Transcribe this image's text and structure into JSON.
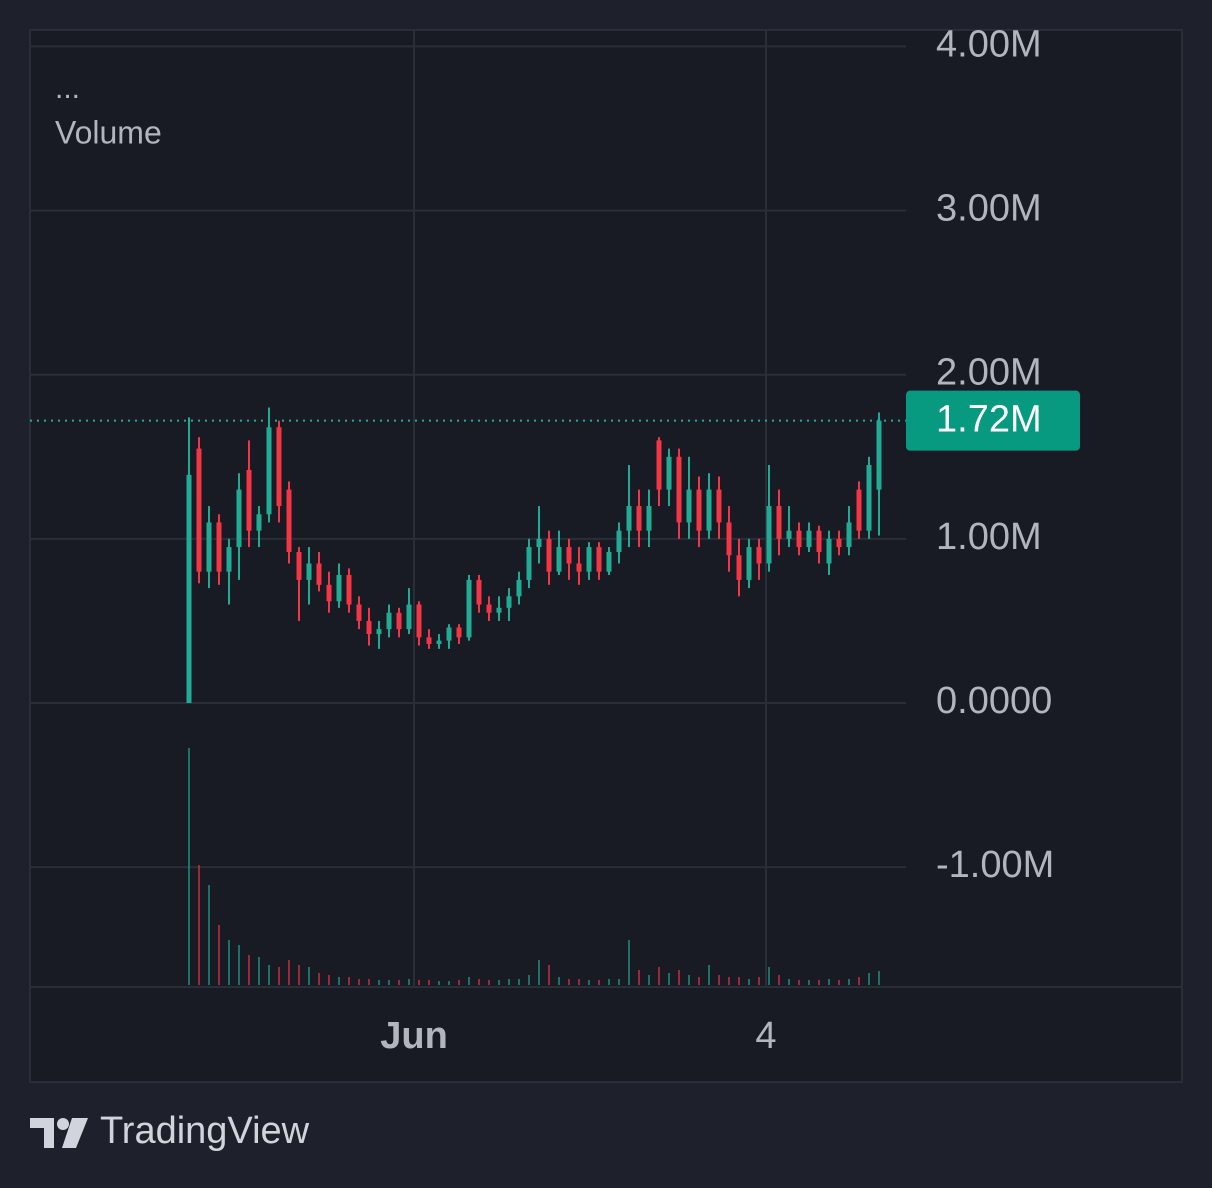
{
  "chart_data": {
    "type": "candlestick",
    "legend_menu": "...",
    "legend_label": "Volume",
    "brand": "TradingView",
    "up_color": "#22ab94",
    "down_color": "#f23645",
    "ylim": [
      -1.73,
      4.1
    ],
    "yticks": [
      {
        "value": 4,
        "label": "4.00M"
      },
      {
        "value": 3,
        "label": "3.00M"
      },
      {
        "value": 2,
        "label": "2.00M"
      },
      {
        "value": 1,
        "label": "1.00M"
      },
      {
        "value": 0,
        "label": "0.0000"
      },
      {
        "value": -1,
        "label": "-1.00M"
      }
    ],
    "xlim": [
      -15.9,
      71.7
    ],
    "xticks": [
      {
        "value": 22.5,
        "label": "Jun"
      },
      {
        "value": 57.7,
        "label": "4"
      }
    ],
    "last_price": {
      "value": 1.72,
      "label": "1.72M"
    },
    "candles": [
      [
        0,
        1.74,
        0,
        1.39
      ],
      [
        1.55,
        1.62,
        0.73,
        0.8
      ],
      [
        0.8,
        1.2,
        0.7,
        1.1
      ],
      [
        1.1,
        1.15,
        0.72,
        0.8
      ],
      [
        0.8,
        1.0,
        0.6,
        0.95
      ],
      [
        0.95,
        1.4,
        0.75,
        1.3
      ],
      [
        1.42,
        1.6,
        0.95,
        1.05
      ],
      [
        1.05,
        1.2,
        0.95,
        1.15
      ],
      [
        1.15,
        1.8,
        1.1,
        1.68
      ],
      [
        1.68,
        1.72,
        1.1,
        1.2
      ],
      [
        1.3,
        1.35,
        0.85,
        0.92
      ],
      [
        0.92,
        0.95,
        0.5,
        0.75
      ],
      [
        0.75,
        0.95,
        0.6,
        0.85
      ],
      [
        0.85,
        0.92,
        0.68,
        0.72
      ],
      [
        0.72,
        0.8,
        0.55,
        0.62
      ],
      [
        0.62,
        0.85,
        0.58,
        0.78
      ],
      [
        0.78,
        0.82,
        0.55,
        0.6
      ],
      [
        0.6,
        0.65,
        0.45,
        0.5
      ],
      [
        0.5,
        0.58,
        0.35,
        0.42
      ],
      [
        0.42,
        0.5,
        0.33,
        0.45
      ],
      [
        0.45,
        0.6,
        0.4,
        0.55
      ],
      [
        0.55,
        0.58,
        0.4,
        0.45
      ],
      [
        0.45,
        0.7,
        0.42,
        0.6
      ],
      [
        0.6,
        0.62,
        0.35,
        0.4
      ],
      [
        0.4,
        0.45,
        0.33,
        0.36
      ],
      [
        0.36,
        0.42,
        0.33,
        0.38
      ],
      [
        0.38,
        0.48,
        0.33,
        0.46
      ],
      [
        0.46,
        0.48,
        0.36,
        0.4
      ],
      [
        0.4,
        0.78,
        0.38,
        0.75
      ],
      [
        0.75,
        0.78,
        0.55,
        0.6
      ],
      [
        0.6,
        0.65,
        0.5,
        0.55
      ],
      [
        0.55,
        0.65,
        0.5,
        0.58
      ],
      [
        0.58,
        0.7,
        0.5,
        0.65
      ],
      [
        0.65,
        0.8,
        0.6,
        0.75
      ],
      [
        0.75,
        1.0,
        0.7,
        0.95
      ],
      [
        0.95,
        1.2,
        0.85,
        1.0
      ],
      [
        1.0,
        1.05,
        0.72,
        0.8
      ],
      [
        0.8,
        1.05,
        0.78,
        0.95
      ],
      [
        0.95,
        1.0,
        0.75,
        0.85
      ],
      [
        0.85,
        0.95,
        0.72,
        0.8
      ],
      [
        0.8,
        0.98,
        0.75,
        0.95
      ],
      [
        0.95,
        0.98,
        0.75,
        0.8
      ],
      [
        0.8,
        0.95,
        0.78,
        0.92
      ],
      [
        0.92,
        1.1,
        0.85,
        1.05
      ],
      [
        1.05,
        1.45,
        0.95,
        1.2
      ],
      [
        1.2,
        1.3,
        0.95,
        1.05
      ],
      [
        1.05,
        1.3,
        0.95,
        1.2
      ],
      [
        1.6,
        1.62,
        1.2,
        1.3
      ],
      [
        1.3,
        1.55,
        1.2,
        1.5
      ],
      [
        1.5,
        1.55,
        1.0,
        1.1
      ],
      [
        1.1,
        1.5,
        1.0,
        1.3
      ],
      [
        1.3,
        1.38,
        0.95,
        1.05
      ],
      [
        1.05,
        1.4,
        1.0,
        1.3
      ],
      [
        1.3,
        1.38,
        1.0,
        1.1
      ],
      [
        1.1,
        1.2,
        0.8,
        0.9
      ],
      [
        0.9,
        1.0,
        0.65,
        0.75
      ],
      [
        0.75,
        1.0,
        0.7,
        0.95
      ],
      [
        0.95,
        1.0,
        0.75,
        0.85
      ],
      [
        0.85,
        1.45,
        0.8,
        1.2
      ],
      [
        1.2,
        1.3,
        0.9,
        1.0
      ],
      [
        1.0,
        1.2,
        0.95,
        1.05
      ],
      [
        1.05,
        1.1,
        0.9,
        0.95
      ],
      [
        0.95,
        1.1,
        0.92,
        1.05
      ],
      [
        1.05,
        1.08,
        0.85,
        0.92
      ],
      [
        0.85,
        1.05,
        0.78,
        1.0
      ],
      [
        1.0,
        1.05,
        0.9,
        0.95
      ],
      [
        0.95,
        1.2,
        0.9,
        1.1
      ],
      [
        1.3,
        1.35,
        1.0,
        1.05
      ],
      [
        1.05,
        1.5,
        1.0,
        1.45
      ],
      [
        1.3,
        1.77,
        1.02,
        1.72
      ]
    ],
    "volume": [
      237,
      120,
      100,
      60,
      45,
      40,
      30,
      28,
      20,
      18,
      25,
      20,
      18,
      12,
      10,
      8,
      8,
      6,
      6,
      5,
      5,
      5,
      6,
      5,
      5,
      4,
      4,
      5,
      8,
      6,
      5,
      5,
      6,
      6,
      10,
      25,
      20,
      8,
      6,
      6,
      5,
      5,
      6,
      6,
      45,
      15,
      10,
      18,
      12,
      15,
      10,
      8,
      20,
      10,
      8,
      8,
      6,
      8,
      18,
      10,
      6,
      5,
      5,
      5,
      6,
      5,
      6,
      8,
      12,
      14
    ]
  }
}
